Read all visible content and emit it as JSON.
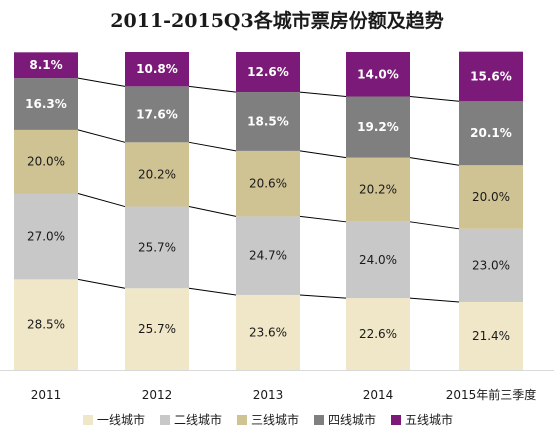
{
  "chart_data": {
    "type": "bar",
    "stacked": true,
    "percent": true,
    "title": "2011-2015Q3各城市票房份额及趋势",
    "categories": [
      "2011",
      "2012",
      "2013",
      "2014",
      "2015年前三季度"
    ],
    "series": [
      {
        "name": "一线城市",
        "color": "#f0e6c8",
        "values": [
          28.5,
          25.7,
          23.6,
          22.6,
          21.4
        ],
        "labels": [
          "28.5%",
          "25.7%",
          "23.6%",
          "22.6%",
          "21.4%"
        ]
      },
      {
        "name": "二线城市",
        "color": "#c8c8c8",
        "values": [
          27.0,
          25.7,
          24.7,
          24.0,
          23.0
        ],
        "labels": [
          "27.0%",
          "25.7%",
          "24.7%",
          "24.0%",
          "23.0%"
        ]
      },
      {
        "name": "三线城市",
        "color": "#cfc293",
        "values": [
          20.0,
          20.2,
          20.6,
          20.2,
          20.0
        ],
        "labels": [
          "20.0%",
          "20.2%",
          "20.6%",
          "20.2%",
          "20.0%"
        ]
      },
      {
        "name": "四线城市",
        "color": "#7f7f7f",
        "values": [
          16.3,
          17.6,
          18.5,
          19.2,
          20.1
        ],
        "labels": [
          "16.3%",
          "17.6%",
          "18.5%",
          "19.2%",
          "20.1%"
        ]
      },
      {
        "name": "五线城市",
        "color": "#7b1a78",
        "values": [
          8.1,
          10.8,
          12.6,
          14.0,
          15.6
        ],
        "labels": [
          "8.1%",
          "10.8%",
          "12.6%",
          "14.0%",
          "15.6%"
        ]
      }
    ],
    "ylim": [
      0,
      100
    ],
    "grid": false,
    "legend": "bottom",
    "connector_lines": true
  }
}
